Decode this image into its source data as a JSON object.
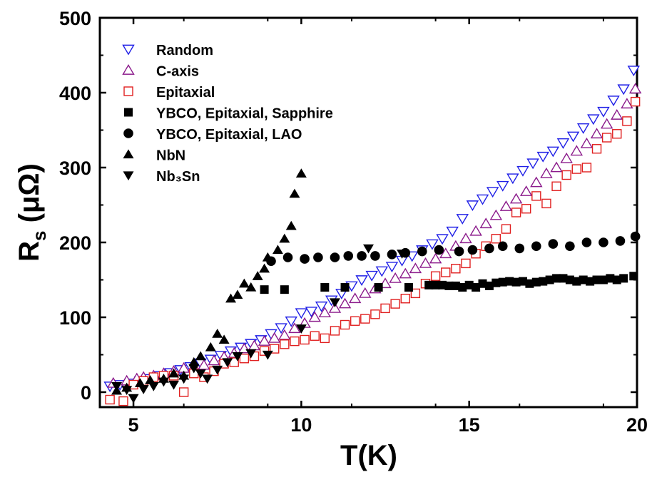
{
  "chart_data": {
    "type": "scatter",
    "xlabel": "T(K)",
    "ylabel": {
      "main": "R",
      "sub": "s",
      "unit": " (μΩ)"
    },
    "xlim": [
      4,
      20
    ],
    "ylim": [
      -20,
      500
    ],
    "x_ticks": [
      5,
      10,
      15,
      20
    ],
    "y_ticks": [
      0,
      100,
      200,
      300,
      400,
      500
    ],
    "grid": false,
    "legend_position": "top-left",
    "series": [
      {
        "name": "Random",
        "marker": "triangle-down-open",
        "color": "#1f1fe6",
        "points": [
          [
            4.3,
            8
          ],
          [
            4.6,
            10
          ],
          [
            4.9,
            12
          ],
          [
            5.2,
            15
          ],
          [
            5.5,
            18
          ],
          [
            5.8,
            22
          ],
          [
            6.1,
            26
          ],
          [
            6.4,
            30
          ],
          [
            6.7,
            34
          ],
          [
            7.0,
            39
          ],
          [
            7.3,
            44
          ],
          [
            7.6,
            49
          ],
          [
            7.9,
            55
          ],
          [
            8.2,
            60
          ],
          [
            8.5,
            65
          ],
          [
            8.8,
            70
          ],
          [
            9.1,
            78
          ],
          [
            9.4,
            86
          ],
          [
            9.7,
            95
          ],
          [
            10.0,
            106
          ],
          [
            10.3,
            108
          ],
          [
            10.6,
            115
          ],
          [
            10.9,
            123
          ],
          [
            11.2,
            132
          ],
          [
            11.5,
            142
          ],
          [
            11.8,
            150
          ],
          [
            12.1,
            156
          ],
          [
            12.4,
            162
          ],
          [
            12.7,
            168
          ],
          [
            13.0,
            176
          ],
          [
            13.3,
            182
          ],
          [
            13.6,
            190
          ],
          [
            13.9,
            198
          ],
          [
            14.2,
            205
          ],
          [
            14.5,
            215
          ],
          [
            14.8,
            232
          ],
          [
            15.1,
            250
          ],
          [
            15.4,
            258
          ],
          [
            15.7,
            268
          ],
          [
            16.0,
            276
          ],
          [
            16.3,
            286
          ],
          [
            16.6,
            296
          ],
          [
            16.9,
            306
          ],
          [
            17.2,
            315
          ],
          [
            17.5,
            322
          ],
          [
            17.8,
            333
          ],
          [
            18.1,
            342
          ],
          [
            18.4,
            353
          ],
          [
            18.7,
            365
          ],
          [
            19.0,
            375
          ],
          [
            19.3,
            390
          ],
          [
            19.6,
            405
          ],
          [
            19.9,
            430
          ]
        ]
      },
      {
        "name": "C-axis",
        "marker": "triangle-up-open",
        "color": "#8b1a8b",
        "points": [
          [
            4.4,
            12
          ],
          [
            4.8,
            15
          ],
          [
            5.1,
            18
          ],
          [
            5.3,
            20
          ],
          [
            5.6,
            22
          ],
          [
            5.9,
            25
          ],
          [
            6.2,
            28
          ],
          [
            6.5,
            32
          ],
          [
            6.8,
            34
          ],
          [
            7.1,
            36
          ],
          [
            7.4,
            42
          ],
          [
            7.7,
            47
          ],
          [
            8.0,
            52
          ],
          [
            8.3,
            58
          ],
          [
            8.6,
            62
          ],
          [
            8.9,
            68
          ],
          [
            9.2,
            72
          ],
          [
            9.5,
            76
          ],
          [
            9.8,
            85
          ],
          [
            10.1,
            92
          ],
          [
            10.4,
            100
          ],
          [
            10.7,
            106
          ],
          [
            11.0,
            112
          ],
          [
            11.3,
            118
          ],
          [
            11.6,
            125
          ],
          [
            11.9,
            132
          ],
          [
            12.2,
            138
          ],
          [
            12.5,
            145
          ],
          [
            12.8,
            152
          ],
          [
            13.1,
            158
          ],
          [
            13.4,
            165
          ],
          [
            13.7,
            172
          ],
          [
            14.0,
            178
          ],
          [
            14.3,
            185
          ],
          [
            14.6,
            195
          ],
          [
            14.9,
            205
          ],
          [
            15.2,
            215
          ],
          [
            15.5,
            225
          ],
          [
            15.8,
            236
          ],
          [
            16.1,
            248
          ],
          [
            16.4,
            258
          ],
          [
            16.7,
            268
          ],
          [
            17.0,
            280
          ],
          [
            17.3,
            292
          ],
          [
            17.6,
            300
          ],
          [
            17.9,
            312
          ],
          [
            18.2,
            322
          ],
          [
            18.5,
            332
          ],
          [
            18.8,
            345
          ],
          [
            19.1,
            358
          ],
          [
            19.4,
            370
          ],
          [
            19.7,
            385
          ],
          [
            19.95,
            405
          ]
        ]
      },
      {
        "name": "Epitaxial",
        "marker": "square-open",
        "color": "#e02020",
        "points": [
          [
            4.3,
            -10
          ],
          [
            4.7,
            -12
          ],
          [
            5.0,
            10
          ],
          [
            5.3,
            15
          ],
          [
            5.6,
            20
          ],
          [
            5.9,
            22
          ],
          [
            6.2,
            22
          ],
          [
            6.5,
            0
          ],
          [
            6.8,
            25
          ],
          [
            7.1,
            20
          ],
          [
            7.4,
            28
          ],
          [
            7.7,
            38
          ],
          [
            8.0,
            40
          ],
          [
            8.3,
            45
          ],
          [
            8.6,
            48
          ],
          [
            8.9,
            55
          ],
          [
            9.2,
            58
          ],
          [
            9.5,
            64
          ],
          [
            9.8,
            68
          ],
          [
            10.1,
            70
          ],
          [
            10.4,
            75
          ],
          [
            10.7,
            72
          ],
          [
            11.0,
            82
          ],
          [
            11.3,
            90
          ],
          [
            11.6,
            95
          ],
          [
            11.9,
            98
          ],
          [
            12.2,
            104
          ],
          [
            12.5,
            112
          ],
          [
            12.8,
            118
          ],
          [
            13.1,
            125
          ],
          [
            13.4,
            132
          ],
          [
            13.7,
            145
          ],
          [
            14.0,
            155
          ],
          [
            14.3,
            160
          ],
          [
            14.6,
            165
          ],
          [
            14.9,
            172
          ],
          [
            15.2,
            185
          ],
          [
            15.5,
            195
          ],
          [
            15.8,
            205
          ],
          [
            16.1,
            218
          ],
          [
            16.4,
            240
          ],
          [
            16.7,
            245
          ],
          [
            17.0,
            262
          ],
          [
            17.3,
            252
          ],
          [
            17.6,
            275
          ],
          [
            17.9,
            290
          ],
          [
            18.2,
            298
          ],
          [
            18.5,
            300
          ],
          [
            18.8,
            325
          ],
          [
            19.1,
            340
          ],
          [
            19.4,
            345
          ],
          [
            19.7,
            362
          ],
          [
            19.95,
            388
          ]
        ]
      },
      {
        "name": "YBCO, Epitaxial, Sapphire",
        "marker": "square-filled",
        "color": "#000000",
        "points": [
          [
            8.9,
            137
          ],
          [
            9.5,
            137
          ],
          [
            10.7,
            140
          ],
          [
            11.3,
            140
          ],
          [
            12.3,
            140
          ],
          [
            13.2,
            140
          ],
          [
            13.8,
            143
          ],
          [
            14.0,
            143
          ],
          [
            14.2,
            143
          ],
          [
            14.4,
            142
          ],
          [
            14.6,
            142
          ],
          [
            14.8,
            140
          ],
          [
            15.0,
            143
          ],
          [
            15.2,
            140
          ],
          [
            15.4,
            145
          ],
          [
            15.6,
            142
          ],
          [
            15.8,
            146
          ],
          [
            16.0,
            147
          ],
          [
            16.2,
            148
          ],
          [
            16.4,
            147
          ],
          [
            16.6,
            148
          ],
          [
            16.8,
            145
          ],
          [
            17.0,
            147
          ],
          [
            17.2,
            148
          ],
          [
            17.4,
            150
          ],
          [
            17.6,
            152
          ],
          [
            17.8,
            152
          ],
          [
            18.0,
            150
          ],
          [
            18.2,
            148
          ],
          [
            18.4,
            150
          ],
          [
            18.6,
            148
          ],
          [
            18.8,
            150
          ],
          [
            19.0,
            150
          ],
          [
            19.2,
            152
          ],
          [
            19.4,
            150
          ],
          [
            19.6,
            152
          ],
          [
            19.9,
            155
          ]
        ]
      },
      {
        "name": "YBCO, Epitaxial, LAO",
        "marker": "circle-filled",
        "color": "#000000",
        "points": [
          [
            9.1,
            175
          ],
          [
            9.6,
            180
          ],
          [
            10.1,
            178
          ],
          [
            10.5,
            180
          ],
          [
            11.0,
            180
          ],
          [
            11.4,
            182
          ],
          [
            11.8,
            182
          ],
          [
            12.2,
            182
          ],
          [
            12.7,
            184
          ],
          [
            13.1,
            186
          ],
          [
            13.6,
            188
          ],
          [
            14.1,
            190
          ],
          [
            14.7,
            188
          ],
          [
            15.1,
            190
          ],
          [
            15.6,
            192
          ],
          [
            16.0,
            195
          ],
          [
            16.5,
            192
          ],
          [
            17.0,
            195
          ],
          [
            17.5,
            198
          ],
          [
            18.0,
            195
          ],
          [
            18.5,
            200
          ],
          [
            19.0,
            200
          ],
          [
            19.5,
            202
          ],
          [
            19.95,
            208
          ]
        ]
      },
      {
        "name": "NbN",
        "marker": "triangle-up-filled",
        "color": "#000000",
        "points": [
          [
            4.5,
            2
          ],
          [
            4.8,
            6
          ],
          [
            5.2,
            12
          ],
          [
            5.5,
            16
          ],
          [
            5.9,
            18
          ],
          [
            6.2,
            25
          ],
          [
            6.5,
            22
          ],
          [
            6.8,
            40
          ],
          [
            7.0,
            48
          ],
          [
            7.3,
            60
          ],
          [
            7.5,
            78
          ],
          [
            7.7,
            70
          ],
          [
            7.9,
            125
          ],
          [
            8.1,
            130
          ],
          [
            8.3,
            145
          ],
          [
            8.5,
            140
          ],
          [
            8.7,
            155
          ],
          [
            8.9,
            165
          ],
          [
            9.0,
            180
          ],
          [
            9.3,
            190
          ],
          [
            9.5,
            205
          ],
          [
            9.7,
            222
          ],
          [
            9.8,
            265
          ],
          [
            10.0,
            292
          ]
        ]
      },
      {
        "name": "Nb₃Sn",
        "marker": "triangle-down-filled",
        "color": "#000000",
        "points": [
          [
            4.5,
            8
          ],
          [
            4.8,
            3
          ],
          [
            5.0,
            -8
          ],
          [
            5.3,
            4
          ],
          [
            5.6,
            8
          ],
          [
            5.9,
            14
          ],
          [
            6.2,
            10
          ],
          [
            6.5,
            18
          ],
          [
            6.8,
            32
          ],
          [
            7.0,
            25
          ],
          [
            7.2,
            18
          ],
          [
            7.5,
            30
          ],
          [
            7.8,
            40
          ],
          [
            8.1,
            48
          ],
          [
            8.5,
            52
          ],
          [
            9.0,
            50
          ],
          [
            10.0,
            85
          ],
          [
            11.0,
            120
          ],
          [
            12.0,
            192
          ],
          [
            13.0,
            185
          ]
        ]
      }
    ]
  }
}
